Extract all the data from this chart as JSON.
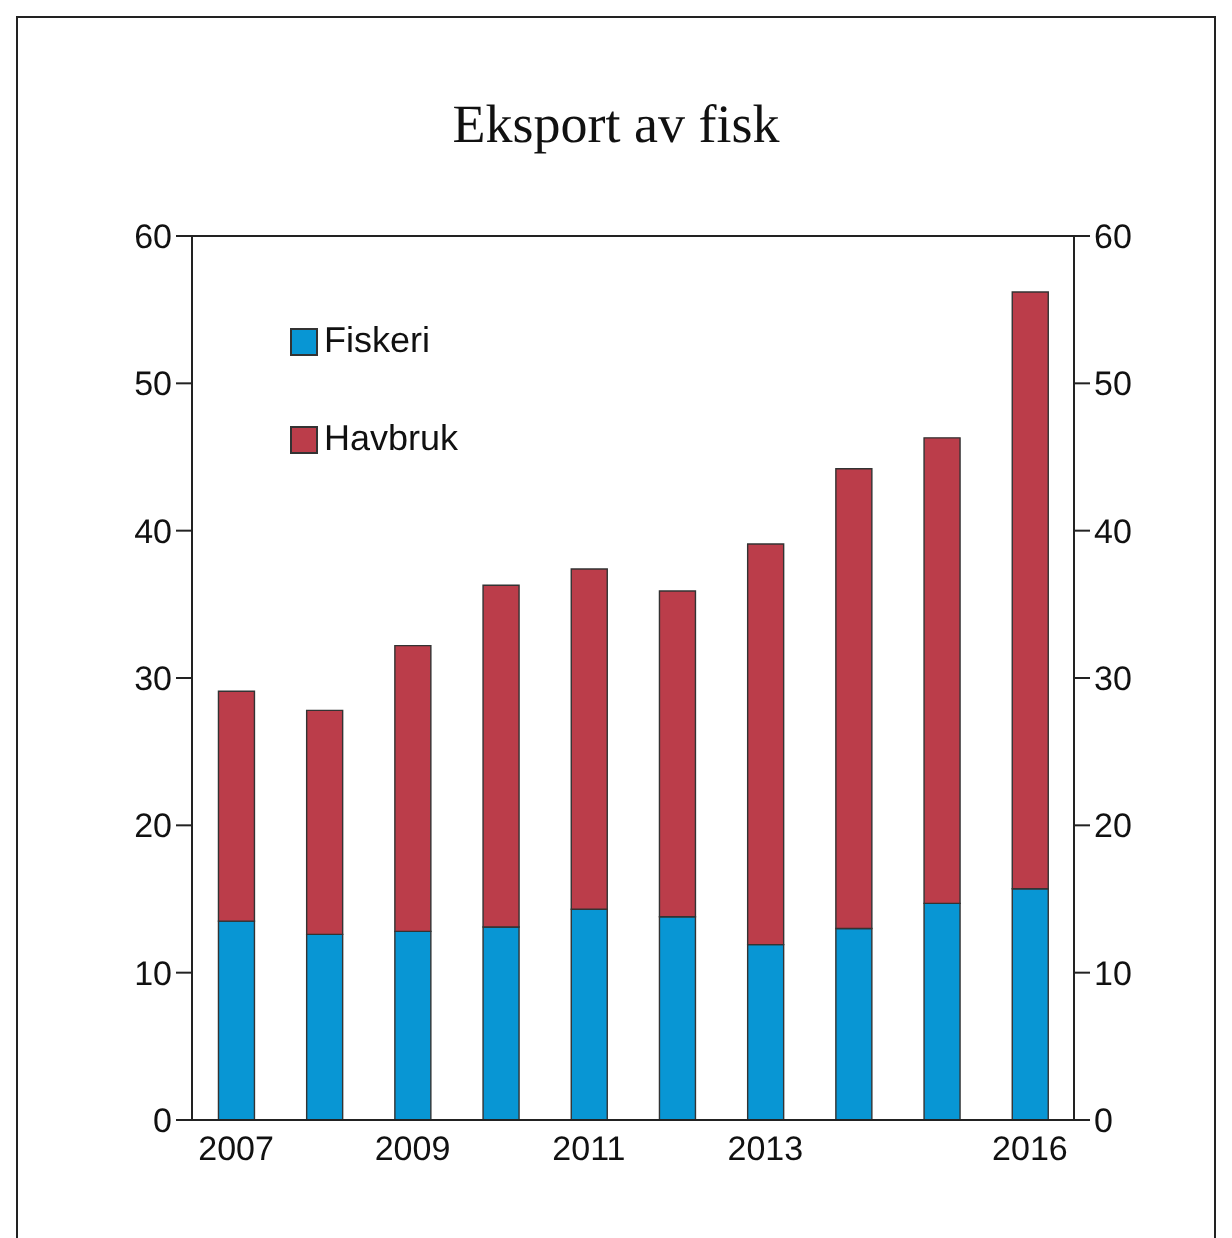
{
  "chart_data": {
    "type": "bar",
    "title": "Eksport av fisk",
    "categories": [
      "2007",
      null,
      "2009",
      null,
      "2011",
      null,
      "2013",
      null,
      null,
      "2016"
    ],
    "series": [
      {
        "name": "Fiskeri",
        "color": "#0896d4",
        "values": [
          13.5,
          12.6,
          12.8,
          13.1,
          14.3,
          13.8,
          11.9,
          13.0,
          14.7,
          15.7
        ]
      },
      {
        "name": "Havbruk",
        "color": "#bb3d4a",
        "values": [
          15.6,
          15.2,
          19.4,
          23.2,
          23.1,
          22.1,
          27.2,
          31.2,
          31.6,
          40.5
        ]
      }
    ],
    "stacked": true,
    "ylim": [
      0,
      60
    ],
    "yticks": [
      0,
      10,
      20,
      30,
      40,
      50,
      60
    ],
    "y2lim": [
      0,
      60
    ],
    "y2ticks": [
      0,
      10,
      20,
      30,
      40,
      50,
      60
    ],
    "grid": false,
    "legend": "top left"
  }
}
